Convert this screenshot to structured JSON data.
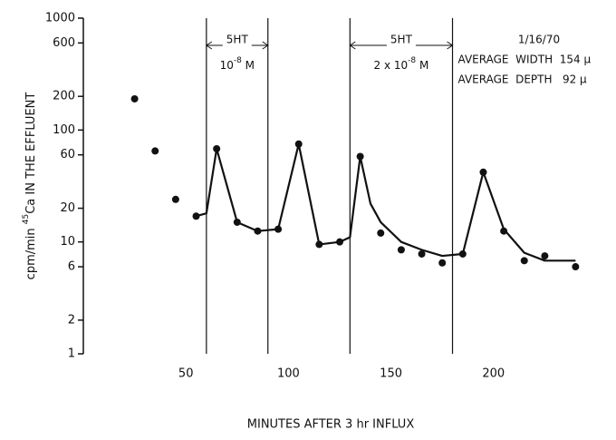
{
  "chart_data": {
    "type": "scatter",
    "ylabel": [
      "cpm/min",
      "45",
      "Ca IN THE EFFLUENT"
    ],
    "xlabel": "MINUTES AFTER 3 hr INFLUX",
    "xlim": [
      0,
      250
    ],
    "xticks": [
      50,
      100,
      150,
      200
    ],
    "ylim": [
      1,
      1000
    ],
    "yticks": [
      1,
      2,
      6,
      10,
      20,
      60,
      100,
      200,
      600,
      1000
    ],
    "log_y": true,
    "color": "#111111",
    "points": {
      "x": [
        25,
        35,
        45,
        55,
        65,
        75,
        85,
        95,
        105,
        115,
        125,
        135,
        145,
        155,
        165,
        175,
        185,
        195,
        205,
        215,
        225,
        240
      ],
      "y": [
        190,
        65,
        24,
        17,
        68,
        15,
        12.5,
        13,
        75,
        9.5,
        10,
        58,
        12,
        8.5,
        7.8,
        6.5,
        7.8,
        42,
        12.5,
        6.8,
        7.5,
        6
      ]
    },
    "curve": {
      "x": [
        55,
        60,
        65,
        75,
        85,
        95,
        105,
        115,
        125,
        130,
        135,
        140,
        145,
        155,
        165,
        175,
        185,
        195,
        205,
        215,
        225,
        240
      ],
      "y": [
        17,
        18,
        68,
        15,
        12.5,
        13,
        75,
        9.5,
        10,
        11,
        58,
        22,
        15,
        10,
        8.5,
        7.5,
        7.8,
        42,
        13,
        8,
        6.8,
        6.8
      ]
    },
    "vlines": [
      60,
      90,
      130,
      180
    ],
    "treatments": [
      {
        "label": "5HT",
        "conc": [
          "10",
          "-8",
          " M"
        ]
      },
      {
        "label": "5HT",
        "conc": [
          "2 x 10",
          "-8",
          " M"
        ]
      }
    ],
    "notes": [
      "1/16/70",
      "AVERAGE  WIDTH  154 µ",
      "AVERAGE  DEPTH   92 µ"
    ]
  }
}
